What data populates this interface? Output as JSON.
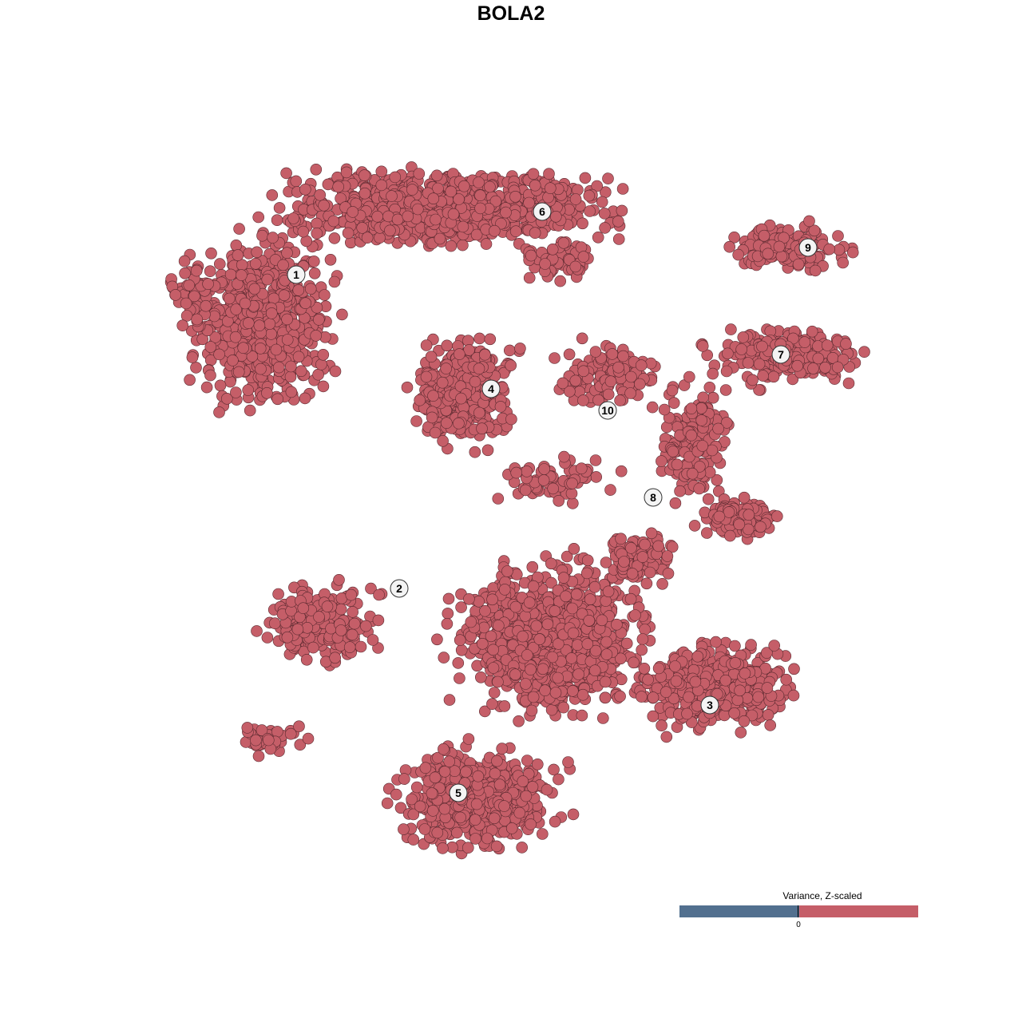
{
  "chart_data": {
    "type": "scatter",
    "title": "BOLA2",
    "xlabel": "",
    "ylabel": "",
    "grid": false,
    "axes_visible": false,
    "point_color": "#c55e68",
    "clusters": [
      {
        "label": "1"
      },
      {
        "label": "2"
      },
      {
        "label": "3"
      },
      {
        "label": "4"
      },
      {
        "label": "5"
      },
      {
        "label": "6"
      },
      {
        "label": "7"
      },
      {
        "label": "8"
      },
      {
        "label": "9"
      },
      {
        "label": "10"
      }
    ],
    "legend": {
      "title": "Variance, Z-scaled",
      "position": "bottom-right",
      "tick_label": "0",
      "low_color": "#52708f",
      "high_color": "#c55e68"
    }
  }
}
